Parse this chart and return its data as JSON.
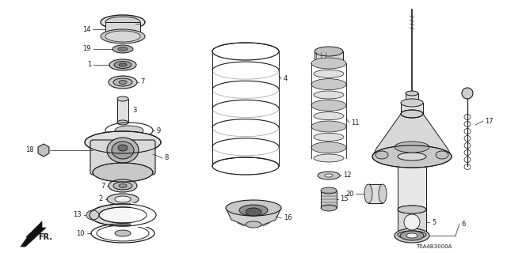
{
  "bg_color": "#ffffff",
  "line_color": "#1a1a1a",
  "ref_code": "T0A4B3000A",
  "lw": 0.6,
  "figsize": [
    6.4,
    3.2
  ],
  "dpi": 100
}
